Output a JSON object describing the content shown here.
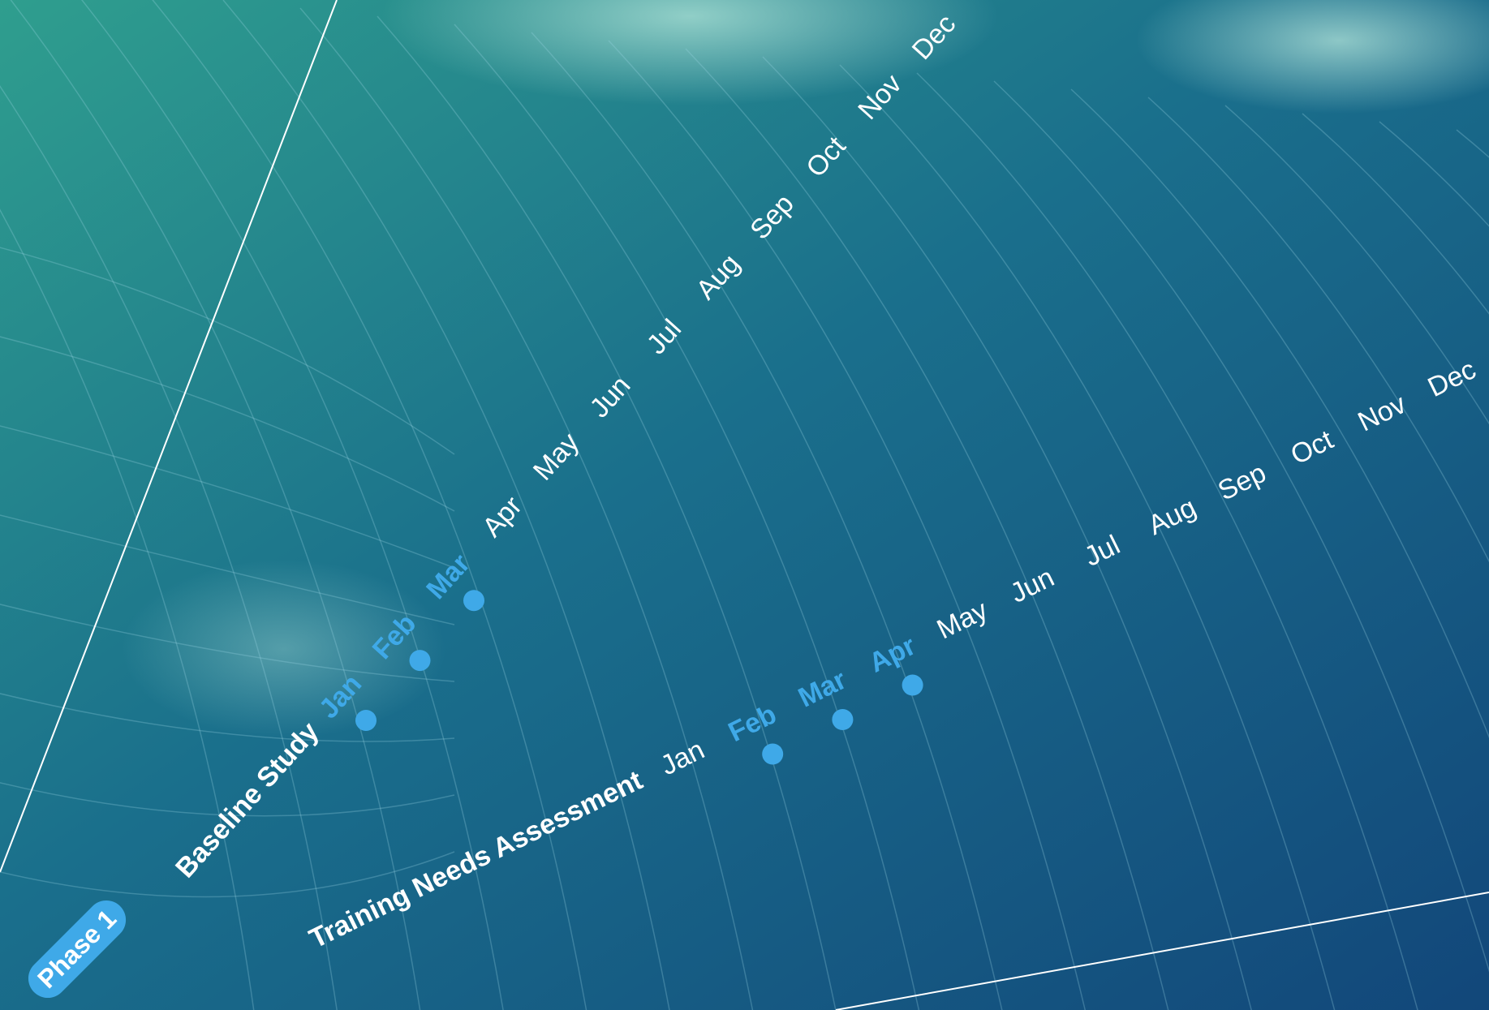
{
  "phase": "Phase 1",
  "tasks": [
    {
      "name": "Baseline Study",
      "months": [
        {
          "label": "Jan",
          "active": true
        },
        {
          "label": "Feb",
          "active": true
        },
        {
          "label": "Mar",
          "active": true
        },
        {
          "label": "Apr",
          "active": false
        },
        {
          "label": "May",
          "active": false
        },
        {
          "label": "Jun",
          "active": false
        },
        {
          "label": "Jul",
          "active": false
        },
        {
          "label": "Aug",
          "active": false
        },
        {
          "label": "Sep",
          "active": false
        },
        {
          "label": "Oct",
          "active": false
        },
        {
          "label": "Nov",
          "active": false
        },
        {
          "label": "Dec",
          "active": false
        }
      ]
    },
    {
      "name": "Training Needs Assessment",
      "months": [
        {
          "label": "Jan",
          "active": false
        },
        {
          "label": "Feb",
          "active": true
        },
        {
          "label": "Mar",
          "active": true
        },
        {
          "label": "Apr",
          "active": true
        },
        {
          "label": "May",
          "active": false
        },
        {
          "label": "Jun",
          "active": false
        },
        {
          "label": "Jul",
          "active": false
        },
        {
          "label": "Aug",
          "active": false
        },
        {
          "label": "Sep",
          "active": false
        },
        {
          "label": "Oct",
          "active": false
        },
        {
          "label": "Nov",
          "active": false
        },
        {
          "label": "Dec",
          "active": false
        }
      ]
    }
  ]
}
